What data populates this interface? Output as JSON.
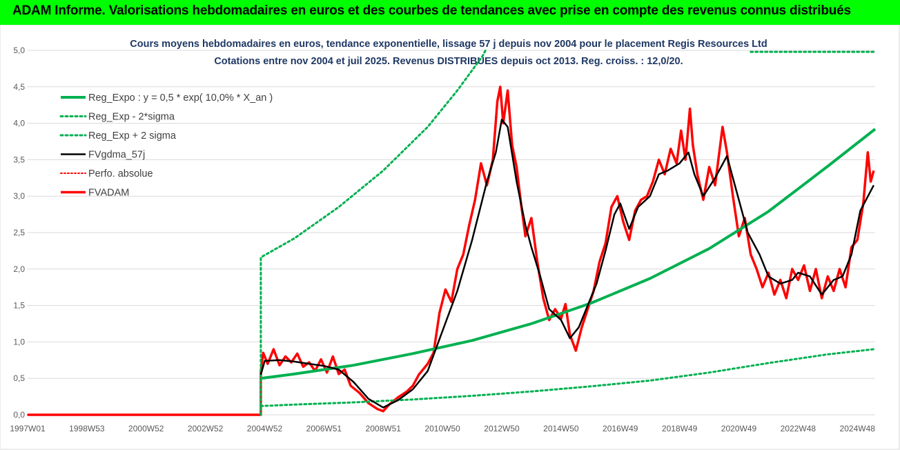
{
  "header": {
    "title": "ADAM Informe. Valorisations hebdomadaires en euros et des courbes de tendances avec prise en compte des revenus connus distribués"
  },
  "chart_data": {
    "type": "line",
    "title": "Cours moyens hebdomadaires en euros, tendance exponentielle, lissage 57 j depuis nov 2004 pour le placement Regis Resources Ltd",
    "subtitle": "Cotations entre nov 2004 et juil 2025. Revenus DISTRIBUES depuis oct 2013. Reg. croiss. : 12,0/20.",
    "xlabel": "",
    "ylabel": "",
    "ylim": [
      0,
      5
    ],
    "yticks": [
      "0,0",
      "0,5",
      "1,0",
      "1,5",
      "2,0",
      "2,5",
      "3,0",
      "3,5",
      "4,0",
      "4,5",
      "5,0"
    ],
    "xlim": [
      1997.0,
      2025.6
    ],
    "xticks": [
      {
        "label": "1997W01",
        "x": 1997.0
      },
      {
        "label": "1998W53",
        "x": 1999.0
      },
      {
        "label": "2000W52",
        "x": 2001.0
      },
      {
        "label": "2002W52",
        "x": 2003.0
      },
      {
        "label": "2004W52",
        "x": 2005.0
      },
      {
        "label": "2006W51",
        "x": 2007.0
      },
      {
        "label": "2008W51",
        "x": 2009.0
      },
      {
        "label": "2010W50",
        "x": 2011.0
      },
      {
        "label": "2012W50",
        "x": 2013.0
      },
      {
        "label": "2014W50",
        "x": 2015.0
      },
      {
        "label": "2016W49",
        "x": 2017.0
      },
      {
        "label": "2018W49",
        "x": 2019.0
      },
      {
        "label": "2020W49",
        "x": 2021.0
      },
      {
        "label": "2022W48",
        "x": 2023.0
      },
      {
        "label": "2024W48",
        "x": 2025.0
      }
    ],
    "grid": "horizontal",
    "legend_position": "top-left",
    "series": [
      {
        "name": "Reg_Expo : y = 0,5 * exp( 10,0% *  X_an )",
        "style": "solid",
        "color": "#00b050",
        "width": 4,
        "points": [
          [
            2004.87,
            0.5
          ],
          [
            2006,
            0.56
          ],
          [
            2008,
            0.68
          ],
          [
            2010,
            0.84
          ],
          [
            2012,
            1.02
          ],
          [
            2014,
            1.25
          ],
          [
            2016,
            1.53
          ],
          [
            2018,
            1.87
          ],
          [
            2020,
            2.28
          ],
          [
            2022,
            2.79
          ],
          [
            2024,
            3.41
          ],
          [
            2025.6,
            3.92
          ]
        ]
      },
      {
        "name": "Reg_Exp - 2*sigma",
        "style": "dotted",
        "color": "#00b050",
        "width": 3,
        "points": [
          [
            2004.87,
            0.12
          ],
          [
            2006,
            0.14
          ],
          [
            2008,
            0.17
          ],
          [
            2010,
            0.21
          ],
          [
            2012,
            0.26
          ],
          [
            2014,
            0.32
          ],
          [
            2016,
            0.39
          ],
          [
            2018,
            0.47
          ],
          [
            2020,
            0.58
          ],
          [
            2022,
            0.71
          ],
          [
            2024,
            0.83
          ],
          [
            2025.55,
            0.9
          ]
        ]
      },
      {
        "name": "Reg_Exp + 2 sigma",
        "style": "dotted",
        "color": "#00b050",
        "width": 3,
        "points": [
          [
            2004.87,
            0.0
          ],
          [
            2004.87,
            2.16
          ],
          [
            2006,
            2.42
          ],
          [
            2007.5,
            2.85
          ],
          [
            2009,
            3.35
          ],
          [
            2010.5,
            3.95
          ],
          [
            2011.5,
            4.45
          ],
          [
            2012.35,
            4.92
          ],
          [
            2012.45,
            5.0
          ]
        ],
        "points_upper": [
          [
            2021.4,
            4.98
          ],
          [
            2025.55,
            4.98
          ]
        ]
      },
      {
        "name": "FVgdma_57j",
        "style": "solid",
        "color": "#000000",
        "width": 2.5,
        "points": [
          [
            2004.87,
            0.55
          ],
          [
            2005.0,
            0.74
          ],
          [
            2005.5,
            0.75
          ],
          [
            2006.0,
            0.73
          ],
          [
            2006.5,
            0.7
          ],
          [
            2007.0,
            0.67
          ],
          [
            2007.5,
            0.62
          ],
          [
            2008.0,
            0.45
          ],
          [
            2008.5,
            0.22
          ],
          [
            2009.0,
            0.1
          ],
          [
            2009.5,
            0.2
          ],
          [
            2010.0,
            0.35
          ],
          [
            2010.5,
            0.6
          ],
          [
            2011.0,
            1.15
          ],
          [
            2011.5,
            1.7
          ],
          [
            2012.0,
            2.4
          ],
          [
            2012.5,
            3.2
          ],
          [
            2012.8,
            3.6
          ],
          [
            2013.0,
            4.05
          ],
          [
            2013.2,
            3.95
          ],
          [
            2013.5,
            3.2
          ],
          [
            2013.8,
            2.6
          ],
          [
            2014.0,
            2.3
          ],
          [
            2014.3,
            1.9
          ],
          [
            2014.6,
            1.45
          ],
          [
            2015.0,
            1.3
          ],
          [
            2015.3,
            1.05
          ],
          [
            2015.6,
            1.2
          ],
          [
            2015.9,
            1.5
          ],
          [
            2016.2,
            1.8
          ],
          [
            2016.5,
            2.25
          ],
          [
            2016.8,
            2.75
          ],
          [
            2017.0,
            2.9
          ],
          [
            2017.3,
            2.55
          ],
          [
            2017.6,
            2.85
          ],
          [
            2018.0,
            3.0
          ],
          [
            2018.3,
            3.3
          ],
          [
            2018.6,
            3.35
          ],
          [
            2019.0,
            3.45
          ],
          [
            2019.3,
            3.6
          ],
          [
            2019.5,
            3.3
          ],
          [
            2019.8,
            3.0
          ],
          [
            2020.2,
            3.25
          ],
          [
            2020.6,
            3.55
          ],
          [
            2021.0,
            2.95
          ],
          [
            2021.3,
            2.5
          ],
          [
            2021.7,
            2.2
          ],
          [
            2022.0,
            1.9
          ],
          [
            2022.4,
            1.8
          ],
          [
            2022.8,
            1.85
          ],
          [
            2023.0,
            1.95
          ],
          [
            2023.4,
            1.9
          ],
          [
            2023.8,
            1.65
          ],
          [
            2024.2,
            1.85
          ],
          [
            2024.5,
            1.9
          ],
          [
            2024.8,
            2.2
          ],
          [
            2025.1,
            2.8
          ],
          [
            2025.55,
            3.15
          ]
        ]
      },
      {
        "name": "Perfo. absolue",
        "style": "dotted",
        "color": "#ff0000",
        "width": 2,
        "points": [
          [
            1997.0,
            0.0
          ],
          [
            2004.87,
            0.0
          ]
        ]
      },
      {
        "name": "FVADAM",
        "style": "solid",
        "color": "#ff0000",
        "width": 3.5,
        "points": [
          [
            1997.0,
            0.0
          ],
          [
            2004.87,
            0.0
          ],
          [
            2004.87,
            0.6
          ],
          [
            2004.95,
            0.85
          ],
          [
            2005.1,
            0.7
          ],
          [
            2005.3,
            0.9
          ],
          [
            2005.5,
            0.68
          ],
          [
            2005.7,
            0.8
          ],
          [
            2005.9,
            0.72
          ],
          [
            2006.1,
            0.84
          ],
          [
            2006.3,
            0.66
          ],
          [
            2006.5,
            0.72
          ],
          [
            2006.7,
            0.6
          ],
          [
            2006.9,
            0.76
          ],
          [
            2007.1,
            0.58
          ],
          [
            2007.3,
            0.8
          ],
          [
            2007.5,
            0.56
          ],
          [
            2007.7,
            0.62
          ],
          [
            2007.9,
            0.4
          ],
          [
            2008.2,
            0.3
          ],
          [
            2008.5,
            0.16
          ],
          [
            2008.8,
            0.08
          ],
          [
            2009.0,
            0.05
          ],
          [
            2009.2,
            0.14
          ],
          [
            2009.5,
            0.24
          ],
          [
            2009.8,
            0.32
          ],
          [
            2010.0,
            0.4
          ],
          [
            2010.2,
            0.55
          ],
          [
            2010.5,
            0.7
          ],
          [
            2010.7,
            0.85
          ],
          [
            2010.9,
            1.4
          ],
          [
            2011.1,
            1.72
          ],
          [
            2011.3,
            1.55
          ],
          [
            2011.5,
            2.0
          ],
          [
            2011.7,
            2.2
          ],
          [
            2011.9,
            2.6
          ],
          [
            2012.1,
            2.95
          ],
          [
            2012.3,
            3.45
          ],
          [
            2012.5,
            3.15
          ],
          [
            2012.7,
            3.5
          ],
          [
            2012.85,
            4.3
          ],
          [
            2012.95,
            4.5
          ],
          [
            2013.05,
            4.0
          ],
          [
            2013.2,
            4.45
          ],
          [
            2013.35,
            3.7
          ],
          [
            2013.5,
            3.4
          ],
          [
            2013.65,
            2.9
          ],
          [
            2013.8,
            2.45
          ],
          [
            2014.0,
            2.7
          ],
          [
            2014.2,
            2.1
          ],
          [
            2014.4,
            1.6
          ],
          [
            2014.6,
            1.3
          ],
          [
            2014.8,
            1.45
          ],
          [
            2015.0,
            1.32
          ],
          [
            2015.15,
            1.52
          ],
          [
            2015.3,
            1.1
          ],
          [
            2015.5,
            0.88
          ],
          [
            2015.7,
            1.2
          ],
          [
            2015.9,
            1.45
          ],
          [
            2016.1,
            1.7
          ],
          [
            2016.3,
            2.1
          ],
          [
            2016.5,
            2.35
          ],
          [
            2016.7,
            2.85
          ],
          [
            2016.9,
            3.0
          ],
          [
            2017.1,
            2.65
          ],
          [
            2017.3,
            2.4
          ],
          [
            2017.5,
            2.8
          ],
          [
            2017.7,
            2.95
          ],
          [
            2017.9,
            3.0
          ],
          [
            2018.1,
            3.2
          ],
          [
            2018.3,
            3.5
          ],
          [
            2018.5,
            3.3
          ],
          [
            2018.7,
            3.65
          ],
          [
            2018.9,
            3.45
          ],
          [
            2019.05,
            3.9
          ],
          [
            2019.2,
            3.5
          ],
          [
            2019.35,
            4.2
          ],
          [
            2019.45,
            3.7
          ],
          [
            2019.6,
            3.3
          ],
          [
            2019.8,
            2.95
          ],
          [
            2020.0,
            3.4
          ],
          [
            2020.2,
            3.15
          ],
          [
            2020.45,
            3.95
          ],
          [
            2020.6,
            3.6
          ],
          [
            2020.8,
            3.0
          ],
          [
            2021.0,
            2.45
          ],
          [
            2021.2,
            2.7
          ],
          [
            2021.4,
            2.2
          ],
          [
            2021.6,
            2.0
          ],
          [
            2021.8,
            1.75
          ],
          [
            2022.0,
            1.95
          ],
          [
            2022.2,
            1.65
          ],
          [
            2022.4,
            1.85
          ],
          [
            2022.6,
            1.6
          ],
          [
            2022.8,
            2.0
          ],
          [
            2023.0,
            1.85
          ],
          [
            2023.2,
            2.05
          ],
          [
            2023.4,
            1.7
          ],
          [
            2023.6,
            2.0
          ],
          [
            2023.8,
            1.6
          ],
          [
            2024.0,
            1.9
          ],
          [
            2024.2,
            1.7
          ],
          [
            2024.4,
            2.0
          ],
          [
            2024.6,
            1.75
          ],
          [
            2024.8,
            2.3
          ],
          [
            2025.0,
            2.4
          ],
          [
            2025.2,
            2.9
          ],
          [
            2025.35,
            3.6
          ],
          [
            2025.45,
            3.2
          ],
          [
            2025.55,
            3.35
          ]
        ]
      }
    ]
  }
}
